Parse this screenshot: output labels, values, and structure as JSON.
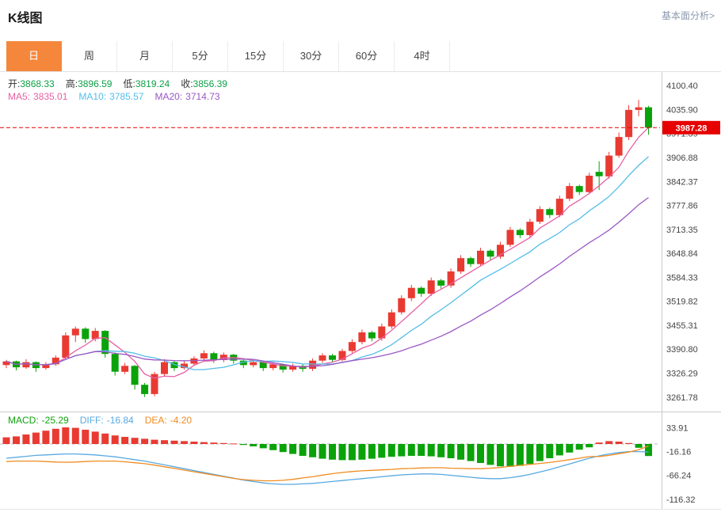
{
  "header": {
    "title": "K线图",
    "link_label": "基本面分析>"
  },
  "tabs": {
    "items": [
      {
        "key": "day",
        "label": "日",
        "active": true
      },
      {
        "key": "week",
        "label": "周",
        "active": false
      },
      {
        "key": "month",
        "label": "月",
        "active": false
      },
      {
        "key": "5min",
        "label": "5分",
        "active": false
      },
      {
        "key": "15min",
        "label": "15分",
        "active": false
      },
      {
        "key": "30min",
        "label": "30分",
        "active": false
      },
      {
        "key": "60min",
        "label": "60分",
        "active": false
      },
      {
        "key": "4hour",
        "label": "4时",
        "active": false
      }
    ]
  },
  "info": {
    "ohlc": {
      "open_label": "开:",
      "open_value": "3868.33",
      "high_label": "高:",
      "high_value": "3896.59",
      "low_label": "低:",
      "low_value": "3819.24",
      "close_label": "收:",
      "close_value": "3856.39"
    },
    "ma": {
      "ma5_label": "MA5:",
      "ma5_value": "3835.01",
      "ma10_label": "MA10:",
      "ma10_value": "3785.57",
      "ma20_label": "MA20:",
      "ma20_value": "3714.73"
    },
    "macd": {
      "macd_label": "MACD:",
      "macd_value": "-25.29",
      "diff_label": "DIFF:",
      "diff_value": "-16.84",
      "dea_label": "DEA:",
      "dea_value": "-4.20"
    }
  },
  "ui_colors": {
    "link": "#8a99ad",
    "accent_tab": "#f5873c",
    "value_green": "#0fa048",
    "macd_green": "#0da30d",
    "axis_text": "#444"
  },
  "chart_data": {
    "type": "candlestick",
    "title": "K线图",
    "timeframe": "日",
    "last_price": 3987.28,
    "main": {
      "ylim": [
        3223,
        4137
      ],
      "axis_labels": [
        "4100.40",
        "4035.90",
        "3971.39",
        "3906.88",
        "3842.37",
        "3777.86",
        "3713.35",
        "3648.84",
        "3584.33",
        "3519.82",
        "3455.31",
        "3390.80",
        "3326.29",
        "3261.78"
      ],
      "ma_periods": [
        5,
        10,
        20
      ],
      "candles_ohlc": [
        [
          3348,
          3362,
          3340,
          3358
        ],
        [
          3358,
          3360,
          3334,
          3342
        ],
        [
          3342,
          3364,
          3338,
          3356
        ],
        [
          3356,
          3358,
          3330,
          3340
        ],
        [
          3340,
          3356,
          3336,
          3350
        ],
        [
          3350,
          3374,
          3346,
          3368
        ],
        [
          3368,
          3436,
          3362,
          3428
        ],
        [
          3428,
          3452,
          3410,
          3446
        ],
        [
          3446,
          3450,
          3408,
          3418
        ],
        [
          3418,
          3448,
          3412,
          3440
        ],
        [
          3440,
          3442,
          3368,
          3378
        ],
        [
          3378,
          3382,
          3320,
          3330
        ],
        [
          3330,
          3354,
          3324,
          3346
        ],
        [
          3346,
          3348,
          3282,
          3295
        ],
        [
          3295,
          3300,
          3262,
          3270
        ],
        [
          3270,
          3330,
          3264,
          3324
        ],
        [
          3324,
          3364,
          3318,
          3356
        ],
        [
          3356,
          3360,
          3332,
          3340
        ],
        [
          3340,
          3358,
          3336,
          3352
        ],
        [
          3352,
          3372,
          3346,
          3366
        ],
        [
          3366,
          3388,
          3360,
          3380
        ],
        [
          3380,
          3384,
          3354,
          3362
        ],
        [
          3362,
          3382,
          3356,
          3376
        ],
        [
          3376,
          3378,
          3352,
          3360
        ],
        [
          3360,
          3364,
          3340,
          3348
        ],
        [
          3348,
          3362,
          3342,
          3356
        ],
        [
          3356,
          3358,
          3332,
          3340
        ],
        [
          3340,
          3356,
          3334,
          3350
        ],
        [
          3350,
          3352,
          3328,
          3336
        ],
        [
          3336,
          3352,
          3330,
          3346
        ],
        [
          3346,
          3350,
          3330,
          3338
        ],
        [
          3338,
          3366,
          3332,
          3360
        ],
        [
          3360,
          3380,
          3354,
          3374
        ],
        [
          3374,
          3378,
          3356,
          3362
        ],
        [
          3362,
          3392,
          3358,
          3386
        ],
        [
          3386,
          3418,
          3380,
          3410
        ],
        [
          3410,
          3444,
          3404,
          3436
        ],
        [
          3436,
          3440,
          3412,
          3420
        ],
        [
          3420,
          3460,
          3414,
          3452
        ],
        [
          3452,
          3498,
          3446,
          3490
        ],
        [
          3490,
          3536,
          3484,
          3528
        ],
        [
          3528,
          3564,
          3520,
          3556
        ],
        [
          3556,
          3560,
          3532,
          3540
        ],
        [
          3540,
          3584,
          3534,
          3576
        ],
        [
          3576,
          3580,
          3554,
          3562
        ],
        [
          3562,
          3608,
          3556,
          3600
        ],
        [
          3600,
          3644,
          3594,
          3636
        ],
        [
          3636,
          3640,
          3612,
          3620
        ],
        [
          3620,
          3664,
          3614,
          3656
        ],
        [
          3656,
          3660,
          3630,
          3640
        ],
        [
          3640,
          3680,
          3634,
          3672
        ],
        [
          3672,
          3720,
          3666,
          3712
        ],
        [
          3712,
          3716,
          3690,
          3698
        ],
        [
          3698,
          3742,
          3692,
          3734
        ],
        [
          3734,
          3776,
          3728,
          3768
        ],
        [
          3768,
          3772,
          3744,
          3752
        ],
        [
          3752,
          3804,
          3746,
          3796
        ],
        [
          3796,
          3838,
          3790,
          3830
        ],
        [
          3830,
          3834,
          3806,
          3814
        ],
        [
          3814,
          3866,
          3808,
          3858
        ],
        [
          3868.33,
          3896.59,
          3819.24,
          3856.39
        ],
        [
          3856,
          3922,
          3850,
          3912
        ],
        [
          3912,
          3974,
          3906,
          3962
        ],
        [
          3962,
          4048,
          3954,
          4035
        ],
        [
          4035,
          4062,
          4018,
          4042
        ],
        [
          4042,
          4046,
          3968,
          3987.28
        ]
      ]
    },
    "macd": {
      "ylim": [
        -135,
        55
      ],
      "axis_labels": [
        "33.91",
        "-16.16",
        "-66.24",
        "-116.32"
      ],
      "hist": [
        14,
        16,
        20,
        24,
        28,
        32,
        35,
        34,
        30,
        26,
        22,
        18,
        15,
        13,
        11,
        9,
        8,
        7,
        6,
        5,
        4,
        3,
        2,
        1,
        -2,
        -5,
        -9,
        -13,
        -17,
        -21,
        -25,
        -28,
        -31,
        -33,
        -34,
        -34,
        -33,
        -31,
        -29,
        -27,
        -26,
        -25,
        -25,
        -26,
        -28,
        -30,
        -33,
        -36,
        -40,
        -44,
        -47,
        -48,
        -46,
        -42,
        -36,
        -30,
        -24,
        -18,
        -12,
        -7,
        3,
        6,
        5,
        2,
        -8,
        -25.29
      ],
      "diff": [
        -30,
        -28,
        -26,
        -24,
        -23,
        -22,
        -21,
        -21,
        -22,
        -23,
        -25,
        -27,
        -30,
        -33,
        -36,
        -40,
        -44,
        -48,
        -52,
        -56,
        -60,
        -64,
        -68,
        -72,
        -76,
        -79,
        -82,
        -84,
        -85,
        -85,
        -84,
        -83,
        -81,
        -79,
        -77,
        -75,
        -73,
        -71,
        -69,
        -67,
        -65,
        -64,
        -63,
        -63,
        -64,
        -66,
        -68,
        -70,
        -72,
        -73,
        -73,
        -71,
        -68,
        -64,
        -59,
        -54,
        -48,
        -42,
        -36,
        -30,
        -25,
        -21,
        -18,
        -16,
        -16,
        -16.84
      ],
      "dea": [
        -37,
        -36,
        -36,
        -36,
        -37,
        -38,
        -38.5,
        -38,
        -37,
        -36,
        -36,
        -36,
        -37.5,
        -39.5,
        -41.5,
        -44.5,
        -48,
        -51.5,
        -55,
        -58.5,
        -62,
        -65.5,
        -69,
        -72.5,
        -75,
        -76.5,
        -77.5,
        -77.5,
        -76.5,
        -74.5,
        -71.5,
        -69,
        -65.5,
        -62.5,
        -60,
        -58,
        -56.5,
        -55.5,
        -54.5,
        -53.5,
        -52,
        -51.5,
        -50.5,
        -50,
        -50,
        -51,
        -51.5,
        -52,
        -52,
        -51,
        -49.5,
        -47,
        -45,
        -43,
        -41,
        -39,
        -36,
        -33,
        -30,
        -26.5,
        -26.5,
        -24,
        -20.5,
        -17,
        -12,
        -4.2
      ]
    },
    "colors": {
      "up": "#e93a32",
      "down": "#0aa20a",
      "ma5": "#e75fa5",
      "ma10": "#53bde8",
      "ma20": "#9a57c4",
      "diff_line": "#58a9e0",
      "dea_line": "#ef8c20",
      "price_line": "#e60000"
    }
  }
}
